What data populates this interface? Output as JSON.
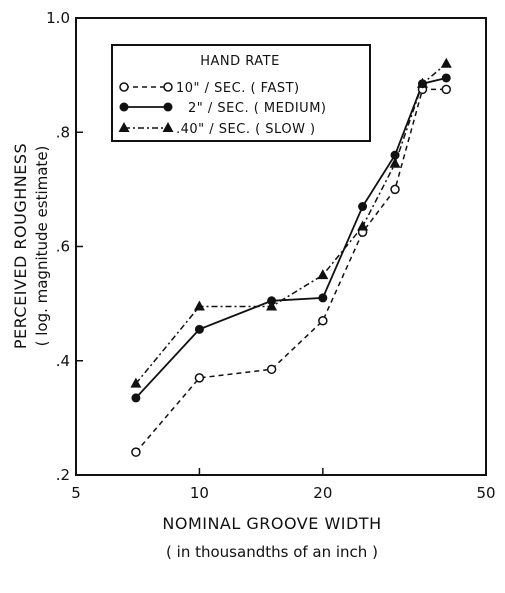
{
  "chart_data": {
    "type": "line",
    "xscale": "log",
    "xlim": [
      5,
      50
    ],
    "ylim": [
      0.2,
      1.0
    ],
    "xticks": [
      5,
      10,
      20,
      50
    ],
    "xtick_labels": [
      "5",
      "10",
      "20",
      "50"
    ],
    "yticks": [
      0.2,
      0.4,
      0.6,
      0.8,
      1.0
    ],
    "ytick_labels": [
      ".2",
      ".4",
      ".6",
      ".8",
      "1.0"
    ],
    "xlabel": "NOMINAL GROOVE WIDTH",
    "xlabel_sub": "( in thousandths of an inch )",
    "ylabel": "PERCEIVED ROUGHNESS",
    "ylabel_sub": "( log. magnitude estimate)",
    "legend_title": "HAND RATE",
    "legend_position": "top-left",
    "series": [
      {
        "name": "10\" / SEC. ( FAST)",
        "marker": "open-circle",
        "line": "dashed",
        "x": [
          7,
          10,
          15,
          20,
          25,
          30,
          35,
          40
        ],
        "y": [
          0.24,
          0.37,
          0.385,
          0.47,
          0.625,
          0.7,
          0.875,
          0.875
        ]
      },
      {
        "name": "2\" / SEC. ( MEDIUM)",
        "marker": "filled-circle",
        "line": "solid",
        "x": [
          7,
          10,
          15,
          20,
          25,
          30,
          35,
          40
        ],
        "y": [
          0.335,
          0.455,
          0.505,
          0.51,
          0.67,
          0.76,
          0.885,
          0.895
        ]
      },
      {
        "name": ".40\" / SEC. ( SLOW )",
        "marker": "filled-triangle",
        "line": "dash-dot",
        "x": [
          7,
          10,
          15,
          20,
          25,
          30,
          35,
          40
        ],
        "y": [
          0.36,
          0.495,
          0.495,
          0.55,
          0.635,
          0.745,
          0.885,
          0.92
        ]
      }
    ]
  }
}
